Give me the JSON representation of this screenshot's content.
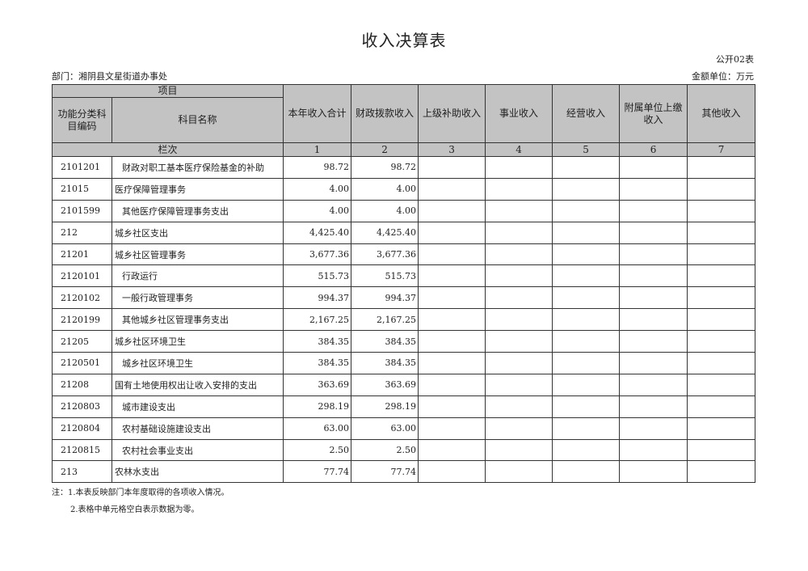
{
  "title": "收入决算表",
  "form_no": "公开02表",
  "department": "部门：湘阴县文星街道办事处",
  "unit": "金额单位：万元",
  "header": {
    "item": "项目",
    "code": "功能分类科目编码",
    "name": "科目名称",
    "columns": [
      "本年收入合计",
      "财政拨款收入",
      "上级补助收入",
      "事业收入",
      "经营收入",
      "附属单位上缴收入",
      "其他收入"
    ],
    "row_label": "栏次",
    "column_numbers": [
      "1",
      "2",
      "3",
      "4",
      "5",
      "6",
      "7"
    ]
  },
  "rows": [
    {
      "code": "2101201",
      "name": "财政对职工基本医疗保险基金的补助",
      "indent": true,
      "values": [
        "98.72",
        "98.72",
        "",
        "",
        "",
        "",
        ""
      ]
    },
    {
      "code": "21015",
      "name": "医疗保障管理事务",
      "indent": false,
      "values": [
        "4.00",
        "4.00",
        "",
        "",
        "",
        "",
        ""
      ]
    },
    {
      "code": "2101599",
      "name": "其他医疗保障管理事务支出",
      "indent": true,
      "values": [
        "4.00",
        "4.00",
        "",
        "",
        "",
        "",
        ""
      ]
    },
    {
      "code": "212",
      "name": "城乡社区支出",
      "indent": false,
      "values": [
        "4,425.40",
        "4,425.40",
        "",
        "",
        "",
        "",
        ""
      ]
    },
    {
      "code": "21201",
      "name": "城乡社区管理事务",
      "indent": false,
      "values": [
        "3,677.36",
        "3,677.36",
        "",
        "",
        "",
        "",
        ""
      ]
    },
    {
      "code": "2120101",
      "name": "行政运行",
      "indent": true,
      "values": [
        "515.73",
        "515.73",
        "",
        "",
        "",
        "",
        ""
      ]
    },
    {
      "code": "2120102",
      "name": "一般行政管理事务",
      "indent": true,
      "values": [
        "994.37",
        "994.37",
        "",
        "",
        "",
        "",
        ""
      ]
    },
    {
      "code": "2120199",
      "name": "其他城乡社区管理事务支出",
      "indent": true,
      "values": [
        "2,167.25",
        "2,167.25",
        "",
        "",
        "",
        "",
        ""
      ]
    },
    {
      "code": "21205",
      "name": "城乡社区环境卫生",
      "indent": false,
      "values": [
        "384.35",
        "384.35",
        "",
        "",
        "",
        "",
        ""
      ]
    },
    {
      "code": "2120501",
      "name": "城乡社区环境卫生",
      "indent": true,
      "values": [
        "384.35",
        "384.35",
        "",
        "",
        "",
        "",
        ""
      ]
    },
    {
      "code": "21208",
      "name": "国有土地使用权出让收入安排的支出",
      "indent": false,
      "values": [
        "363.69",
        "363.69",
        "",
        "",
        "",
        "",
        ""
      ]
    },
    {
      "code": "2120803",
      "name": "城市建设支出",
      "indent": true,
      "values": [
        "298.19",
        "298.19",
        "",
        "",
        "",
        "",
        ""
      ]
    },
    {
      "code": "2120804",
      "name": "农村基础设施建设支出",
      "indent": true,
      "values": [
        "63.00",
        "63.00",
        "",
        "",
        "",
        "",
        ""
      ]
    },
    {
      "code": "2120815",
      "name": "农村社会事业支出",
      "indent": true,
      "values": [
        "2.50",
        "2.50",
        "",
        "",
        "",
        "",
        ""
      ]
    },
    {
      "code": "213",
      "name": "农林水支出",
      "indent": false,
      "values": [
        "77.74",
        "77.74",
        "",
        "",
        "",
        "",
        ""
      ]
    }
  ],
  "notes": [
    "注：1.本表反映部门本年度取得的各项收入情况。",
    "2.表格中单元格空白表示数据为零。"
  ]
}
